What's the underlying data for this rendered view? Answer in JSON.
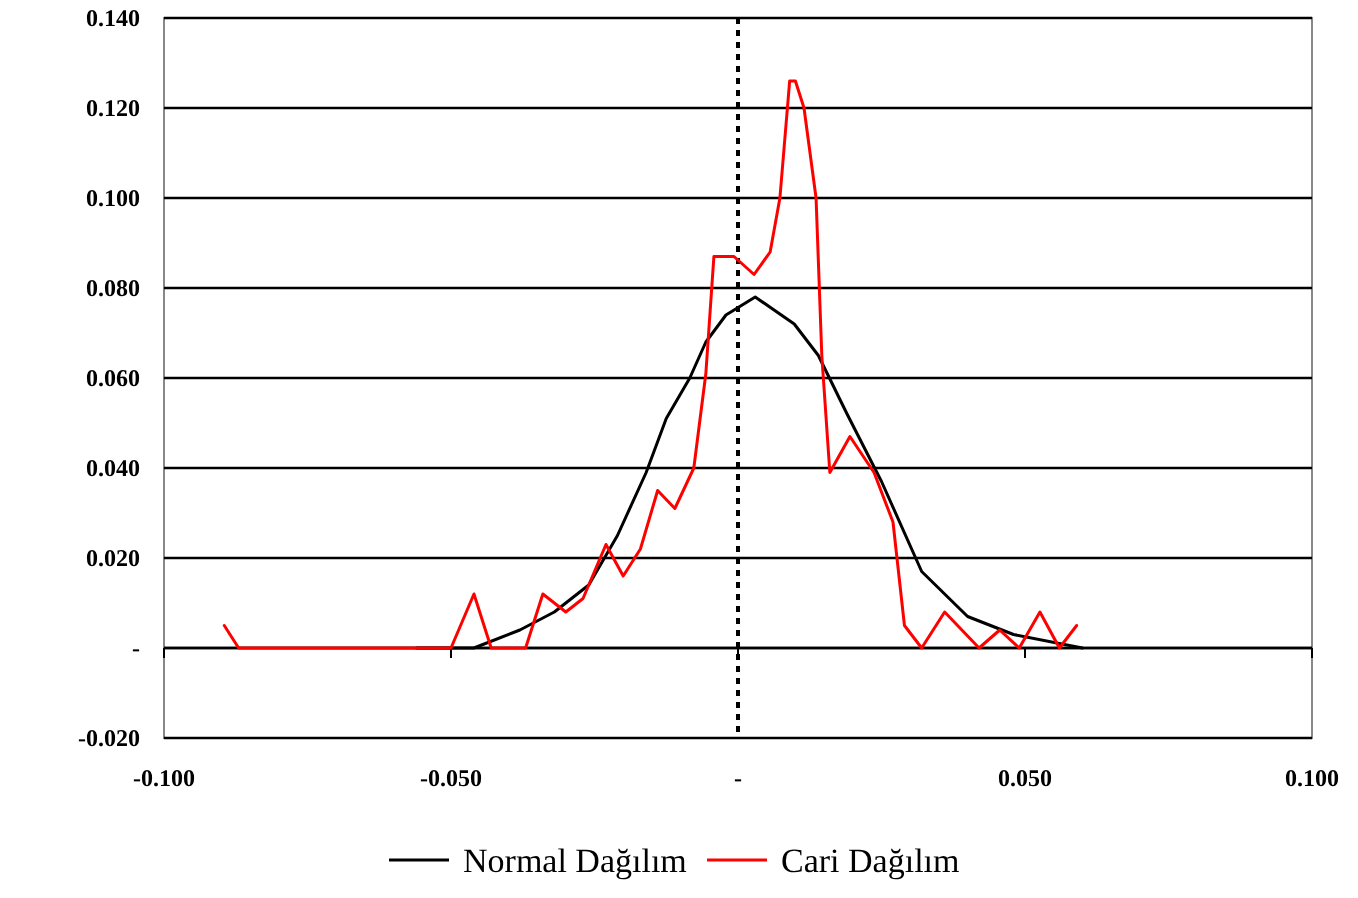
{
  "chart_data": {
    "type": "line",
    "xlim": [
      -0.1,
      0.1
    ],
    "xticks": [
      {
        "value": -0.1,
        "label": "-0.100"
      },
      {
        "value": -0.05,
        "label": "-0.050"
      },
      {
        "value": 0,
        "label": "-"
      },
      {
        "value": 0.05,
        "label": "0.050"
      },
      {
        "value": 0.1,
        "label": "0.100"
      }
    ],
    "ylim": [
      -0.02,
      0.14
    ],
    "yticks": [
      {
        "value": -0.02,
        "label": "-0.020"
      },
      {
        "value": 0,
        "label": "-"
      },
      {
        "value": 0.02,
        "label": "0.020"
      },
      {
        "value": 0.04,
        "label": "0.040"
      },
      {
        "value": 0.06,
        "label": "0.060"
      },
      {
        "value": 0.08,
        "label": "0.080"
      },
      {
        "value": 0.1,
        "label": "0.100"
      },
      {
        "value": 0.12,
        "label": "0.120"
      },
      {
        "value": 0.14,
        "label": "0.140"
      }
    ],
    "grid": "y",
    "legend": "bottom",
    "marker": "none",
    "line_style": "solid",
    "ref_lines": [
      {
        "axis": "x",
        "value": 0,
        "line_style": "dotted",
        "color": "#000000"
      }
    ],
    "series": [
      {
        "name": "Normal Dağılım",
        "color": "#000000",
        "x": [
          -0.056,
          -0.046,
          -0.038,
          -0.032,
          -0.026,
          -0.021,
          -0.016,
          -0.0125,
          -0.0084,
          -0.0056,
          -0.0021,
          0.003,
          0.0098,
          0.014,
          0.019,
          0.025,
          0.032,
          0.04,
          0.048,
          0.06
        ],
        "values": [
          0,
          0,
          0.004,
          0.008,
          0.014,
          0.025,
          0.039,
          0.051,
          0.06,
          0.068,
          0.074,
          0.078,
          0.072,
          0.065,
          0.052,
          0.037,
          0.017,
          0.007,
          0.003,
          0
        ]
      },
      {
        "name": "Cari Dağılım",
        "color": "#ff0000",
        "x": [
          -0.0895,
          -0.087,
          -0.05,
          -0.046,
          -0.043,
          -0.037,
          -0.034,
          -0.03,
          -0.027,
          -0.023,
          -0.02,
          -0.017,
          -0.014,
          -0.011,
          -0.0077,
          -0.0056,
          -0.0042,
          -0.0007,
          0.0028,
          0.0056,
          0.0073,
          0.009,
          0.01,
          0.0115,
          0.0136,
          0.0146,
          0.016,
          0.0195,
          0.0237,
          0.027,
          0.029,
          0.032,
          0.036,
          0.042,
          0.0456,
          0.049,
          0.0526,
          0.056,
          0.059
        ],
        "values": [
          0.005,
          0,
          0,
          0.012,
          0,
          0,
          0.012,
          0.008,
          0.011,
          0.023,
          0.016,
          0.022,
          0.035,
          0.031,
          0.04,
          0.061,
          0.087,
          0.087,
          0.083,
          0.088,
          0.1,
          0.126,
          0.126,
          0.12,
          0.1,
          0.065,
          0.039,
          0.047,
          0.039,
          0.028,
          0.005,
          0,
          0.008,
          0,
          0.004,
          0,
          0.008,
          0,
          0.005
        ]
      }
    ]
  }
}
